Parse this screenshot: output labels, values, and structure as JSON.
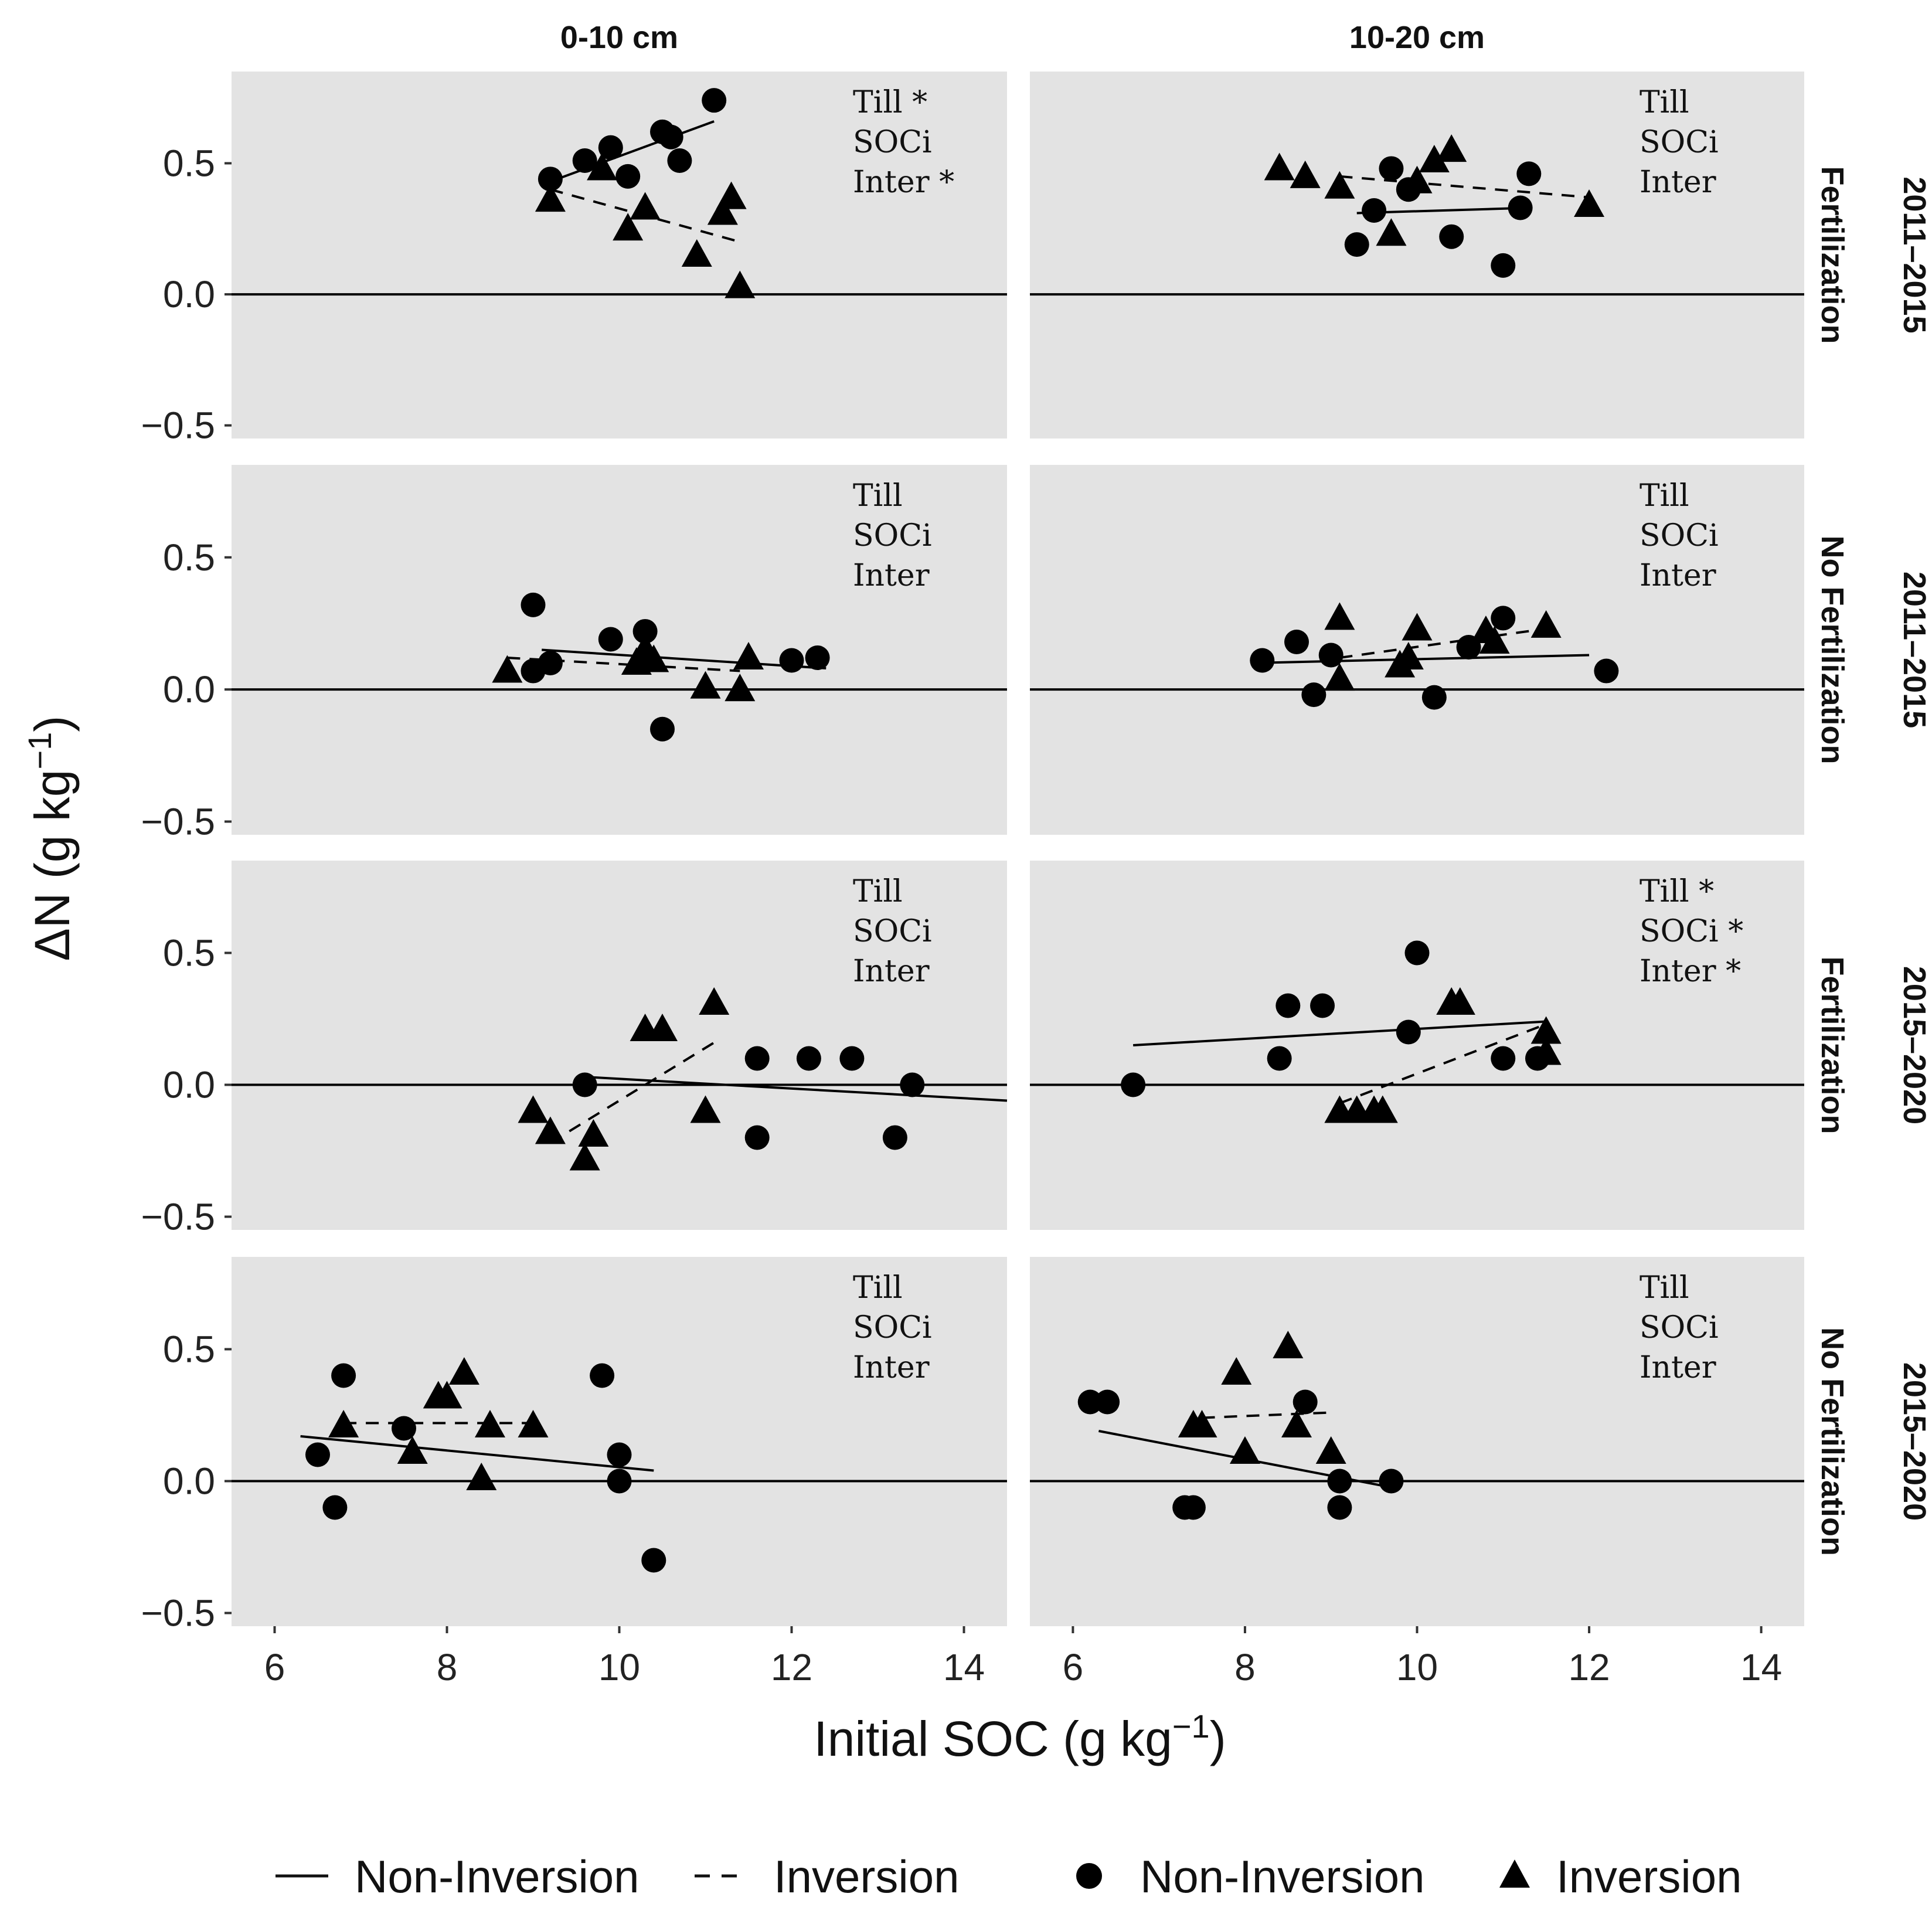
{
  "chart_data": {
    "type": "scatter",
    "xlabel": "Initial SOC (g kg",
    "xlabel_sup": "−1",
    "xlabel_end": ")",
    "ylabel": "ΔN (g kg",
    "ylabel_sup": "−1",
    "ylabel_end": ")",
    "xlim": [
      5.5,
      14.5
    ],
    "ylim": [
      -0.55,
      0.85
    ],
    "xticks": [
      6,
      8,
      10,
      12,
      14
    ],
    "xtick_labels": [
      "6",
      "8",
      "10",
      "12",
      "14"
    ],
    "yticks": [
      -0.5,
      0.0,
      0.5
    ],
    "ytick_labels": [
      "−0.5",
      "0.0",
      "0.5"
    ],
    "grid": false,
    "reference_line_y": 0,
    "col_labels": [
      "0-10 cm",
      "10-20 cm"
    ],
    "row_labels": [
      {
        "period": "2011–2015",
        "treatment": "Fertilization"
      },
      {
        "period": "2011–2015",
        "treatment": "No Fertilization"
      },
      {
        "period": "2015–2020",
        "treatment": "Fertilization"
      },
      {
        "period": "2015–2020",
        "treatment": "No Fertilization"
      }
    ],
    "legend": {
      "placement": "bottom",
      "items": [
        {
          "kind": "line-solid",
          "label": "Non-Inversion"
        },
        {
          "kind": "line-dashed",
          "label": "Inversion"
        },
        {
          "kind": "circle",
          "label": "Non-Inversion"
        },
        {
          "kind": "triangle",
          "label": "Inversion"
        }
      ]
    },
    "panels": [
      {
        "row": 0,
        "col": 0,
        "annotations": [
          "Till *",
          "SOCi",
          "Inter *"
        ],
        "non_inversion": {
          "points": [
            [
              9.2,
              0.44
            ],
            [
              9.6,
              0.51
            ],
            [
              9.9,
              0.56
            ],
            [
              10.1,
              0.45
            ],
            [
              10.5,
              0.62
            ],
            [
              10.6,
              0.6
            ],
            [
              10.7,
              0.51
            ],
            [
              11.1,
              0.74
            ]
          ],
          "fit": [
            [
              9.2,
              0.43
            ],
            [
              11.1,
              0.66
            ]
          ]
        },
        "inversion": {
          "points": [
            [
              9.2,
              0.36
            ],
            [
              9.8,
              0.48
            ],
            [
              10.1,
              0.25
            ],
            [
              10.3,
              0.33
            ],
            [
              10.9,
              0.15
            ],
            [
              11.2,
              0.31
            ],
            [
              11.3,
              0.37
            ],
            [
              11.4,
              0.03
            ]
          ],
          "fit": [
            [
              9.2,
              0.4
            ],
            [
              11.4,
              0.2
            ]
          ]
        }
      },
      {
        "row": 0,
        "col": 1,
        "annotations": [
          "Till",
          "SOCi",
          "Inter"
        ],
        "non_inversion": {
          "points": [
            [
              9.3,
              0.19
            ],
            [
              9.5,
              0.32
            ],
            [
              9.7,
              0.48
            ],
            [
              9.9,
              0.4
            ],
            [
              10.4,
              0.22
            ],
            [
              11.0,
              0.11
            ],
            [
              11.2,
              0.33
            ],
            [
              11.3,
              0.46
            ]
          ],
          "fit": [
            [
              9.3,
              0.31
            ],
            [
              11.3,
              0.33
            ]
          ]
        },
        "inversion": {
          "points": [
            [
              8.4,
              0.48
            ],
            [
              8.7,
              0.45
            ],
            [
              9.1,
              0.41
            ],
            [
              9.7,
              0.23
            ],
            [
              10.0,
              0.43
            ],
            [
              10.2,
              0.51
            ],
            [
              10.4,
              0.55
            ],
            [
              12.0,
              0.34
            ]
          ],
          "fit": [
            [
              9.1,
              0.45
            ],
            [
              12.0,
              0.37
            ]
          ]
        }
      },
      {
        "row": 1,
        "col": 0,
        "annotations": [
          "Till",
          "SOCi",
          "Inter"
        ],
        "non_inversion": {
          "points": [
            [
              9.0,
              0.32
            ],
            [
              9.0,
              0.07
            ],
            [
              9.2,
              0.1
            ],
            [
              9.9,
              0.19
            ],
            [
              10.3,
              0.22
            ],
            [
              10.5,
              -0.15
            ],
            [
              12.0,
              0.11
            ],
            [
              12.3,
              0.12
            ]
          ],
          "fit": [
            [
              9.1,
              0.15
            ],
            [
              12.4,
              0.08
            ]
          ]
        },
        "inversion": {
          "points": [
            [
              8.7,
              0.07
            ],
            [
              10.2,
              0.1
            ],
            [
              10.3,
              0.15
            ],
            [
              10.4,
              0.11
            ],
            [
              11.0,
              0.01
            ],
            [
              11.4,
              0.0
            ],
            [
              11.5,
              0.12
            ]
          ],
          "fit": [
            [
              8.7,
              0.12
            ],
            [
              11.4,
              0.07
            ]
          ]
        }
      },
      {
        "row": 1,
        "col": 1,
        "annotations": [
          "Till",
          "SOCi",
          "Inter"
        ],
        "non_inversion": {
          "points": [
            [
              8.2,
              0.11
            ],
            [
              8.6,
              0.18
            ],
            [
              8.8,
              -0.02
            ],
            [
              9.0,
              0.13
            ],
            [
              10.2,
              -0.03
            ],
            [
              10.6,
              0.16
            ],
            [
              11.0,
              0.27
            ],
            [
              12.2,
              0.07
            ]
          ],
          "fit": [
            [
              8.1,
              0.1
            ],
            [
              12.0,
              0.13
            ]
          ]
        },
        "inversion": {
          "points": [
            [
              9.1,
              0.04
            ],
            [
              9.1,
              0.27
            ],
            [
              9.8,
              0.09
            ],
            [
              9.9,
              0.12
            ],
            [
              10.0,
              0.23
            ],
            [
              10.8,
              0.22
            ],
            [
              10.9,
              0.18
            ],
            [
              11.5,
              0.24
            ]
          ],
          "fit": [
            [
              9.1,
              0.12
            ],
            [
              11.5,
              0.23
            ]
          ]
        }
      },
      {
        "row": 2,
        "col": 0,
        "annotations": [
          "Till",
          "SOCi",
          "Inter"
        ],
        "non_inversion": {
          "points": [
            [
              9.6,
              0.0
            ],
            [
              11.6,
              0.1
            ],
            [
              11.6,
              -0.2
            ],
            [
              12.2,
              0.1
            ],
            [
              12.7,
              0.1
            ],
            [
              13.2,
              -0.2
            ],
            [
              13.4,
              0.0
            ]
          ],
          "fit": [
            [
              9.6,
              0.03
            ],
            [
              14.5,
              -0.06
            ]
          ]
        },
        "inversion": {
          "points": [
            [
              9.0,
              -0.1
            ],
            [
              9.2,
              -0.18
            ],
            [
              9.6,
              -0.28
            ],
            [
              9.7,
              -0.19
            ],
            [
              10.3,
              0.21
            ],
            [
              10.5,
              0.21
            ],
            [
              11.0,
              -0.1
            ],
            [
              11.1,
              0.31
            ]
          ],
          "fit": [
            [
              9.2,
              -0.22
            ],
            [
              11.1,
              0.16
            ]
          ]
        }
      },
      {
        "row": 2,
        "col": 1,
        "annotations": [
          "Till *",
          "SOCi *",
          "Inter *"
        ],
        "non_inversion": {
          "points": [
            [
              6.7,
              0.0
            ],
            [
              8.4,
              0.1
            ],
            [
              8.5,
              0.3
            ],
            [
              8.9,
              0.3
            ],
            [
              9.9,
              0.2
            ],
            [
              10.0,
              0.5
            ],
            [
              11.0,
              0.1
            ],
            [
              11.4,
              0.1
            ]
          ],
          "fit": [
            [
              6.7,
              0.15
            ],
            [
              11.5,
              0.24
            ]
          ]
        },
        "inversion": {
          "points": [
            [
              9.1,
              -0.1
            ],
            [
              9.3,
              -0.1
            ],
            [
              9.5,
              -0.1
            ],
            [
              9.6,
              -0.1
            ],
            [
              10.4,
              0.31
            ],
            [
              10.5,
              0.31
            ],
            [
              11.5,
              0.2
            ],
            [
              11.5,
              0.12
            ]
          ],
          "fit": [
            [
              9.1,
              -0.07
            ],
            [
              11.5,
              0.23
            ]
          ]
        }
      },
      {
        "row": 3,
        "col": 0,
        "annotations": [
          "Till",
          "SOCi",
          "Inter"
        ],
        "non_inversion": {
          "points": [
            [
              6.5,
              0.1
            ],
            [
              6.7,
              -0.1
            ],
            [
              6.8,
              0.4
            ],
            [
              7.5,
              0.2
            ],
            [
              9.8,
              0.4
            ],
            [
              10.0,
              0.1
            ],
            [
              10.0,
              0.0
            ],
            [
              10.4,
              -0.3
            ]
          ],
          "fit": [
            [
              6.3,
              0.17
            ],
            [
              10.4,
              0.04
            ]
          ]
        },
        "inversion": {
          "points": [
            [
              6.8,
              0.21
            ],
            [
              7.6,
              0.11
            ],
            [
              7.9,
              0.32
            ],
            [
              8.0,
              0.32
            ],
            [
              8.2,
              0.41
            ],
            [
              8.4,
              0.01
            ],
            [
              8.5,
              0.21
            ],
            [
              9.0,
              0.21
            ]
          ],
          "fit": [
            [
              6.8,
              0.22
            ],
            [
              9.0,
              0.22
            ]
          ]
        }
      },
      {
        "row": 3,
        "col": 1,
        "annotations": [
          "Till",
          "SOCi",
          "Inter"
        ],
        "non_inversion": {
          "points": [
            [
              6.2,
              0.3
            ],
            [
              6.4,
              0.3
            ],
            [
              7.3,
              -0.1
            ],
            [
              7.4,
              -0.1
            ],
            [
              8.7,
              0.3
            ],
            [
              9.1,
              0.0
            ],
            [
              9.1,
              -0.1
            ],
            [
              9.7,
              0.0
            ]
          ],
          "fit": [
            [
              6.3,
              0.19
            ],
            [
              9.8,
              -0.03
            ]
          ]
        },
        "inversion": {
          "points": [
            [
              7.4,
              0.21
            ],
            [
              7.5,
              0.21
            ],
            [
              7.9,
              0.41
            ],
            [
              8.0,
              0.11
            ],
            [
              8.5,
              0.51
            ],
            [
              8.6,
              0.21
            ],
            [
              9.0,
              0.11
            ]
          ],
          "fit": [
            [
              7.5,
              0.24
            ],
            [
              9.0,
              0.26
            ]
          ]
        }
      }
    ]
  }
}
